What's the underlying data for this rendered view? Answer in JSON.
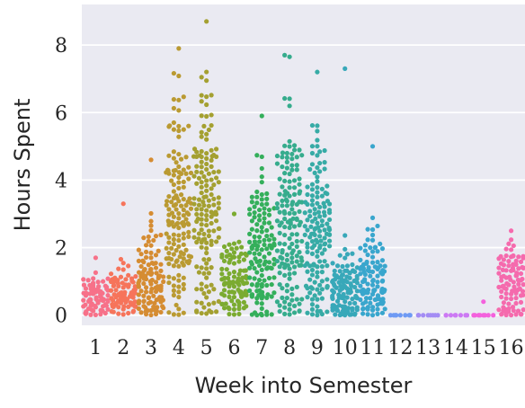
{
  "chart_data": {
    "type": "scatter",
    "subtype": "swarm",
    "title": "",
    "xlabel": "Week into Semester",
    "ylabel": "Hours Spent",
    "categories": [
      "1",
      "2",
      "3",
      "4",
      "5",
      "6",
      "7",
      "8",
      "9",
      "10",
      "11",
      "12",
      "13",
      "14",
      "15",
      "16"
    ],
    "ylim": [
      -0.3,
      9.2
    ],
    "yticks": [
      "0",
      "2",
      "4",
      "6",
      "8"
    ],
    "grid": true,
    "legend": "none",
    "background": "#eaeaf2",
    "gridline_color": "#ffffff",
    "colors": [
      "#f77189",
      "#f6745b",
      "#d58c32",
      "#ba9a32",
      "#a4a031",
      "#7bab31",
      "#34af5b",
      "#36ac8d",
      "#37aba6",
      "#38a8b9",
      "#39a6cd",
      "#6e9af4",
      "#a38cf4",
      "#cc79f4",
      "#f461dd",
      "#f56aad"
    ],
    "series": [
      {
        "name": "1",
        "n": 80,
        "summary": {
          "mean": 0.55,
          "spread": 0.35,
          "max_shown": 1.7
        }
      },
      {
        "name": "2",
        "n": 90,
        "summary": {
          "mean": 0.6,
          "spread": 0.4,
          "max_shown": 3.3
        }
      },
      {
        "name": "3",
        "n": 110,
        "summary": {
          "mean": 1.0,
          "spread": 0.7,
          "max_shown": 4.6
        }
      },
      {
        "name": "4",
        "n": 150,
        "summary": {
          "mean": 3.0,
          "spread": 1.5,
          "max_shown": 7.9
        }
      },
      {
        "name": "5",
        "n": 150,
        "summary": {
          "mean": 3.0,
          "spread": 1.8,
          "max_shown": 8.7
        }
      },
      {
        "name": "6",
        "n": 100,
        "summary": {
          "mean": 1.0,
          "spread": 0.7,
          "max_shown": 3.0
        }
      },
      {
        "name": "7",
        "n": 130,
        "summary": {
          "mean": 1.8,
          "spread": 1.2,
          "max_shown": 5.9
        }
      },
      {
        "name": "8",
        "n": 150,
        "summary": {
          "mean": 2.6,
          "spread": 1.6,
          "max_shown": 7.7
        }
      },
      {
        "name": "9",
        "n": 150,
        "summary": {
          "mean": 2.3,
          "spread": 1.3,
          "max_shown": 7.2
        }
      },
      {
        "name": "10",
        "n": 120,
        "summary": {
          "mean": 0.7,
          "spread": 0.6,
          "max_shown": 7.3
        }
      },
      {
        "name": "11",
        "n": 110,
        "summary": {
          "mean": 1.0,
          "spread": 0.8,
          "max_shown": 5.0
        }
      },
      {
        "name": "12",
        "n": 8,
        "summary": {
          "mean": 0.0,
          "spread": 0.0,
          "max_shown": 0.0
        }
      },
      {
        "name": "13",
        "n": 8,
        "summary": {
          "mean": 0.0,
          "spread": 0.0,
          "max_shown": 0.0
        }
      },
      {
        "name": "14",
        "n": 8,
        "summary": {
          "mean": 0.0,
          "spread": 0.0,
          "max_shown": 0.0
        }
      },
      {
        "name": "15",
        "n": 8,
        "summary": {
          "mean": 0.0,
          "spread": 0.0,
          "max_shown": 0.4
        }
      },
      {
        "name": "16",
        "n": 100,
        "summary": {
          "mean": 0.9,
          "spread": 0.6,
          "max_shown": 2.5
        }
      }
    ]
  }
}
